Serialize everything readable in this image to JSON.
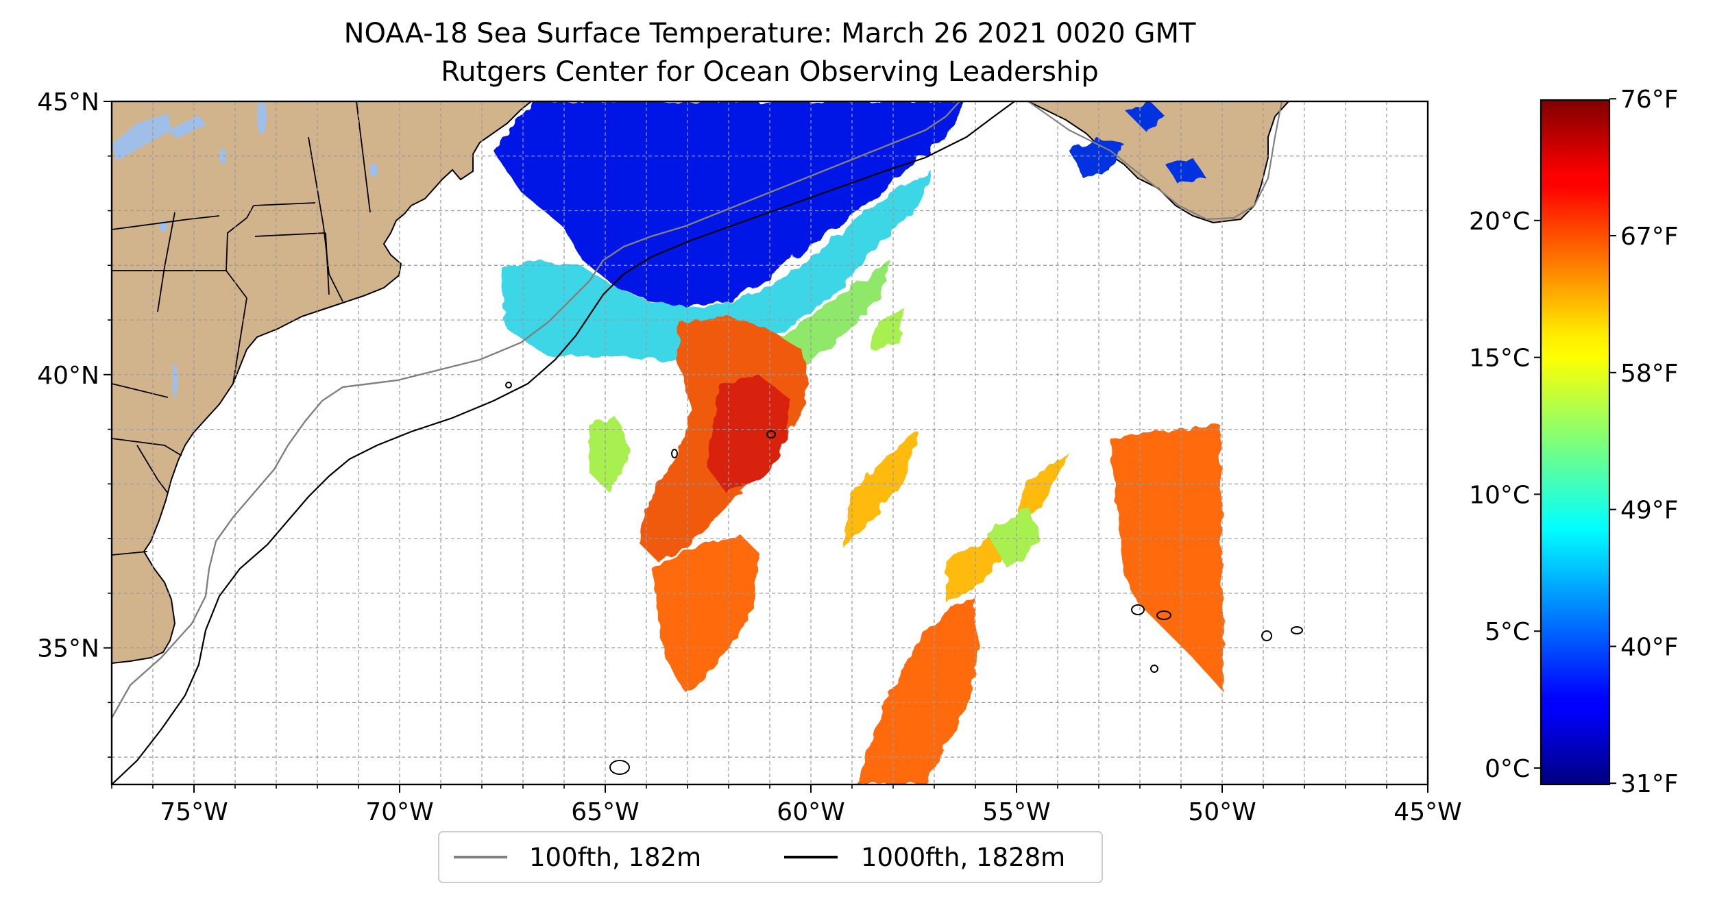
{
  "title": {
    "line1": "NOAA-18 Sea Surface Temperature: March 26 2021 0020 GMT",
    "line2": "Rutgers Center for Ocean Observing Leadership"
  },
  "map": {
    "lon_range": [
      -77,
      -45
    ],
    "lat_range": [
      32.5,
      45
    ],
    "land_color": "#d2b48c",
    "lake_color": "#9fbfe8",
    "grid": "dashed, every 1 degree"
  },
  "axes": {
    "x_ticks": [
      {
        "value": -75,
        "label": "75°W"
      },
      {
        "value": -70,
        "label": "70°W"
      },
      {
        "value": -65,
        "label": "65°W"
      },
      {
        "value": -60,
        "label": "60°W"
      },
      {
        "value": -55,
        "label": "55°W"
      },
      {
        "value": -50,
        "label": "50°W"
      },
      {
        "value": -45,
        "label": "45°W"
      }
    ],
    "y_ticks": [
      {
        "value": 45,
        "label": "45°N"
      },
      {
        "value": 40,
        "label": "40°N"
      },
      {
        "value": 35,
        "label": "35°N"
      }
    ]
  },
  "legend": {
    "items": [
      {
        "label": "100fth, 182m",
        "color": "#808080"
      },
      {
        "label": "1000fth, 1828m",
        "color": "#000000"
      }
    ]
  },
  "colorbar": {
    "colormap": "jet",
    "range_c": [
      -0.6,
      24.4
    ],
    "celsius_ticks": [
      {
        "value": 0,
        "label": "0°C"
      },
      {
        "value": 5,
        "label": "5°C"
      },
      {
        "value": 10,
        "label": "10°C"
      },
      {
        "value": 15,
        "label": "15°C"
      },
      {
        "value": 20,
        "label": "20°C"
      }
    ],
    "fahrenheit_ticks": [
      {
        "value": 31,
        "label": "31°F"
      },
      {
        "value": 40,
        "label": "40°F"
      },
      {
        "value": 49,
        "label": "49°F"
      },
      {
        "value": 58,
        "label": "58°F"
      },
      {
        "value": 67,
        "label": "67°F"
      },
      {
        "value": 76,
        "label": "76°F"
      }
    ]
  }
}
